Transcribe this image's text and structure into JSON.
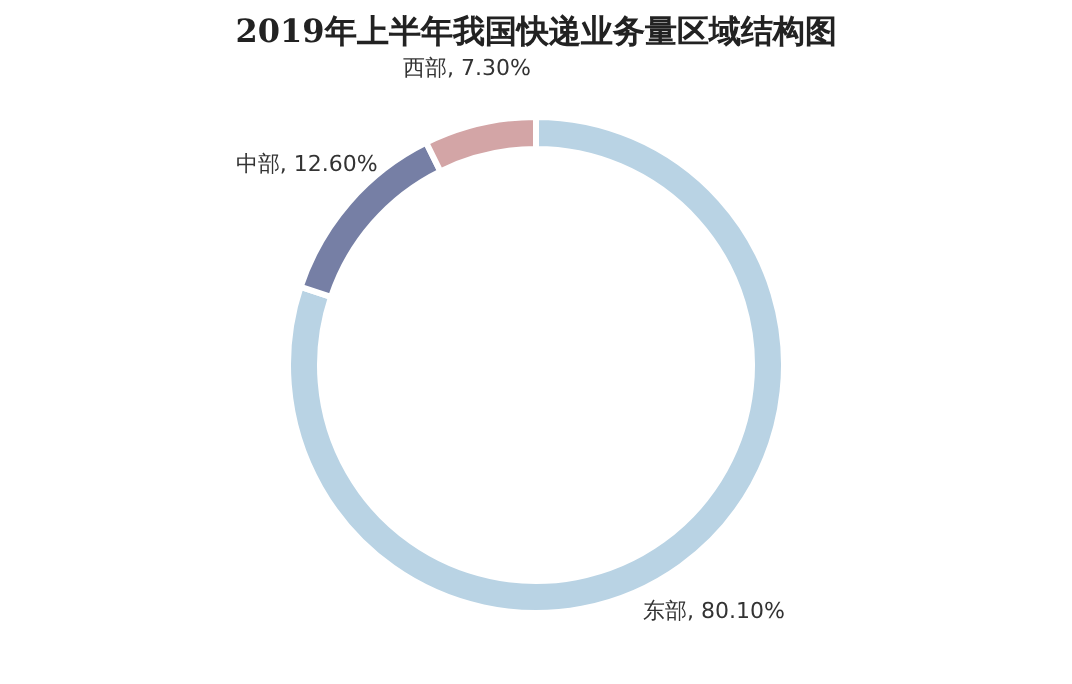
{
  "chart_data": {
    "type": "donut",
    "title": "2019年上半年我国快递业务量区域结构图",
    "categories": [
      "东部",
      "中部",
      "西部"
    ],
    "values": [
      80.1,
      12.6,
      7.3
    ],
    "value_labels": [
      "80.10%",
      "12.60%",
      "7.30%"
    ],
    "colors": [
      "#b9d3e4",
      "#767fa5",
      "#d3a5a6"
    ],
    "legend": false
  }
}
